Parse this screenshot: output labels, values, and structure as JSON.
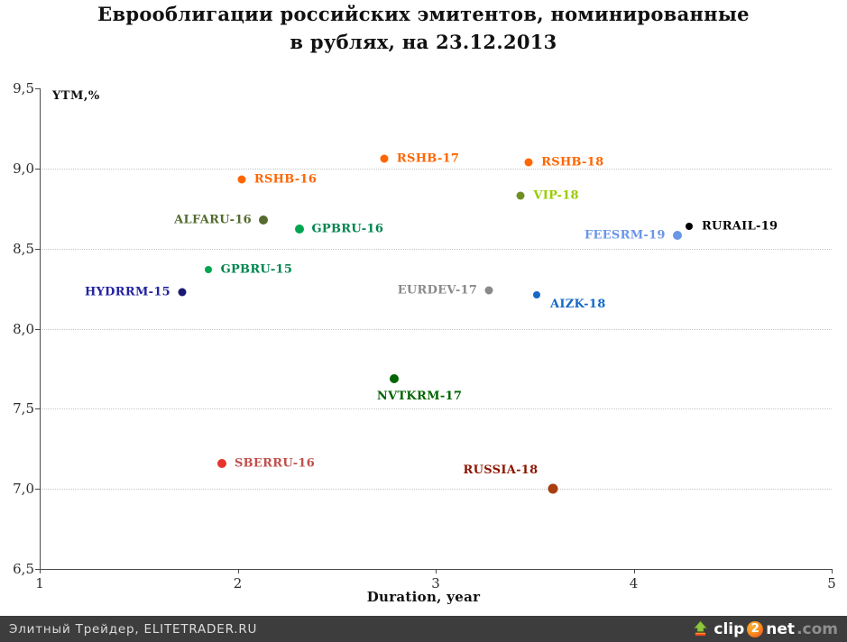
{
  "title": {
    "line1": "Еврооблигации российских эмитентов, номинированные",
    "line2": "в рублях, на 23.12.2013"
  },
  "chart_data": {
    "type": "scatter",
    "title": "Еврооблигации российских эмитентов, номинированные в рублях, на 23.12.2013",
    "xlabel": "Duration, year",
    "ylabel": "YTM,%",
    "xlim": [
      1,
      5
    ],
    "ylim": [
      6.5,
      9.5
    ],
    "grid": "horizontal-dotted",
    "legend": "none (labels next to points)",
    "x_ticks": [
      {
        "v": 1,
        "label": "1"
      },
      {
        "v": 2,
        "label": "2"
      },
      {
        "v": 3,
        "label": "3"
      },
      {
        "v": 4,
        "label": "4"
      },
      {
        "v": 5,
        "label": "5"
      }
    ],
    "y_ticks": [
      {
        "v": 6.5,
        "label": "6,5"
      },
      {
        "v": 7.0,
        "label": "7,0"
      },
      {
        "v": 7.5,
        "label": "7,5"
      },
      {
        "v": 8.0,
        "label": "8,0"
      },
      {
        "v": 8.5,
        "label": "8,5"
      },
      {
        "v": 9.0,
        "label": "9,0"
      },
      {
        "v": 9.5,
        "label": "9,5"
      }
    ],
    "points": [
      {
        "name": "RSHB-17",
        "x": 2.74,
        "y": 9.06,
        "dot_color": "#ff6600",
        "label_color": "#ff6600",
        "label_pos": "right",
        "size": 9
      },
      {
        "name": "RSHB-18",
        "x": 3.47,
        "y": 9.04,
        "dot_color": "#ff6600",
        "label_color": "#ff6600",
        "label_pos": "right",
        "size": 9
      },
      {
        "name": "RSHB-16",
        "x": 2.02,
        "y": 8.93,
        "dot_color": "#ff6600",
        "label_color": "#ff6600",
        "label_pos": "right",
        "size": 9
      },
      {
        "name": "VIP-18",
        "x": 3.43,
        "y": 8.83,
        "dot_color": "#6f8f23",
        "label_color": "#99cc00",
        "label_pos": "right",
        "size": 9
      },
      {
        "name": "ALFARU-16",
        "x": 2.13,
        "y": 8.68,
        "dot_color": "#556b2f",
        "label_color": "#556b2f",
        "label_pos": "left",
        "size": 10
      },
      {
        "name": "GPBRU-16",
        "x": 2.31,
        "y": 8.62,
        "dot_color": "#00a551",
        "label_color": "#00854f",
        "label_pos": "right",
        "size": 10
      },
      {
        "name": "RURAIL-19",
        "x": 4.28,
        "y": 8.64,
        "dot_color": "#000000",
        "label_color": "#000000",
        "label_pos": "right",
        "size": 8
      },
      {
        "name": "FEESRM-19",
        "x": 4.22,
        "y": 8.58,
        "dot_color": "#6a96e8",
        "label_color": "#6a96e8",
        "label_pos": "left",
        "size": 10
      },
      {
        "name": "GPBRU-15",
        "x": 1.85,
        "y": 8.37,
        "dot_color": "#00a551",
        "label_color": "#00854f",
        "label_pos": "right",
        "size": 8
      },
      {
        "name": "HYDRRM-15",
        "x": 1.72,
        "y": 8.23,
        "dot_color": "#191970",
        "label_color": "#2323a0",
        "label_pos": "left",
        "size": 9
      },
      {
        "name": "EURDEV-17",
        "x": 3.27,
        "y": 8.24,
        "dot_color": "#8a8a8a",
        "label_color": "#8a8a8a",
        "label_pos": "left",
        "size": 9
      },
      {
        "name": "AIZK-18",
        "x": 3.51,
        "y": 8.21,
        "dot_color": "#1569c7",
        "label_color": "#1569c7",
        "label_pos": "below-right",
        "size": 8
      },
      {
        "name": "NVTKRM-17",
        "x": 2.79,
        "y": 7.69,
        "dot_color": "#006400",
        "label_color": "#006400",
        "label_pos": "below",
        "size": 10
      },
      {
        "name": "SBERRU-16",
        "x": 1.92,
        "y": 7.16,
        "dot_color": "#e8332d",
        "label_color": "#c0504d",
        "label_pos": "right",
        "size": 10
      },
      {
        "name": "RUSSIA-18",
        "x": 3.59,
        "y": 7.0,
        "dot_color": "#a93e0f",
        "label_color": "#8b1500",
        "label_pos": "above-left",
        "size": 11
      }
    ]
  },
  "footer": {
    "text": "Элитный Трейдер, ELITETRADER.RU",
    "logo": {
      "part1": "clip",
      "part2": "2",
      "part3": "net",
      "part4": ".com"
    }
  }
}
